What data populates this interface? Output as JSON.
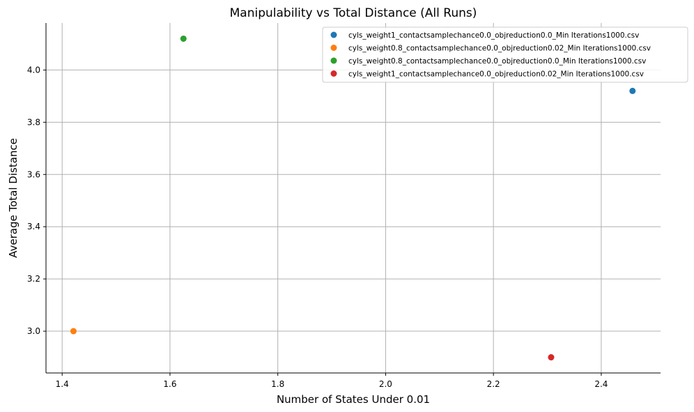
{
  "chart_data": {
    "type": "scatter",
    "title": "Manipulability vs Total Distance (All Runs)",
    "xlabel": "Number of States Under 0.01",
    "ylabel": "Average Total Distance",
    "xlim": [
      1.37,
      2.51
    ],
    "ylim": [
      2.84,
      4.18
    ],
    "xticks": [
      "1.4",
      "1.6",
      "1.8",
      "2.0",
      "2.2",
      "2.4"
    ],
    "yticks": [
      "3.0",
      "3.2",
      "3.4",
      "3.6",
      "3.8",
      "4.0"
    ],
    "grid": true,
    "legend_position": "top-right",
    "series": [
      {
        "name": "cyls_weight1_contactsamplechance0.0_objreduction0.0_Min Iterations1000.csv",
        "color": "#1f77b4",
        "points": [
          {
            "x": 2.458,
            "y": 3.92
          }
        ]
      },
      {
        "name": "cyls_weight0.8_contactsamplechance0.0_objreduction0.02_Min Iterations1000.csv",
        "color": "#ff7f0e",
        "points": [
          {
            "x": 1.421,
            "y": 3.0
          }
        ]
      },
      {
        "name": "cyls_weight0.8_contactsamplechance0.0_objreduction0.0_Min Iterations1000.csv",
        "color": "#2ca02c",
        "points": [
          {
            "x": 1.625,
            "y": 4.12
          }
        ]
      },
      {
        "name": "cyls_weight1_contactsamplechance0.0_objreduction0.02_Min Iterations1000.csv",
        "color": "#d62728",
        "points": [
          {
            "x": 2.307,
            "y": 2.9
          }
        ]
      }
    ]
  }
}
